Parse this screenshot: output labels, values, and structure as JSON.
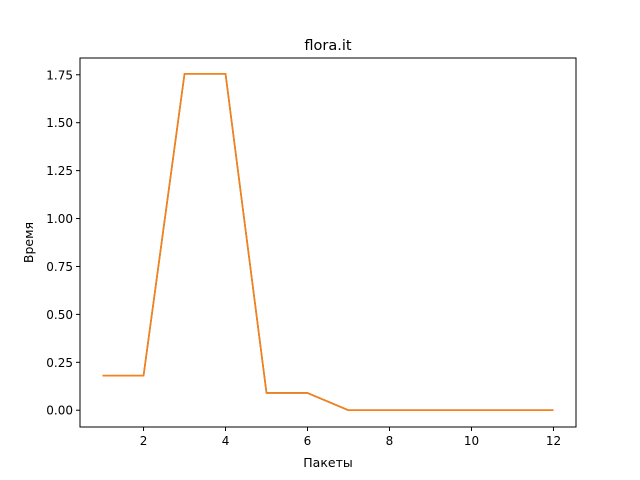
{
  "chart_data": {
    "type": "line",
    "title": "flora.it",
    "xlabel": "Пакеты",
    "ylabel": "Время",
    "xlim": [
      0.45,
      12.55
    ],
    "ylim": [
      -0.0875,
      1.8375
    ],
    "xticks": [
      2,
      4,
      6,
      8,
      10,
      12
    ],
    "yticks": [
      0.0,
      0.25,
      0.5,
      0.75,
      1.0,
      1.25,
      1.5,
      1.75
    ],
    "xtick_labels": [
      "2",
      "4",
      "6",
      "8",
      "10",
      "12"
    ],
    "ytick_labels": [
      "0.00",
      "0.25",
      "0.50",
      "0.75",
      "1.00",
      "1.25",
      "1.50",
      "1.75"
    ],
    "grid": false,
    "x": [
      1,
      2,
      3,
      4,
      5,
      6,
      7,
      8,
      9,
      10,
      11,
      12
    ],
    "series": [
      {
        "color": "#1f77b4",
        "values": [
          0.18,
          0.18,
          1.755,
          1.755,
          0.09,
          0.09,
          0.0,
          0.0,
          0.0,
          0.0,
          0.0,
          0.0
        ]
      },
      {
        "color": "#ff7f0e",
        "values": [
          0.18,
          0.18,
          1.755,
          1.755,
          0.09,
          0.09,
          0.0,
          0.0,
          0.0,
          0.0,
          0.0,
          0.0
        ]
      }
    ]
  }
}
